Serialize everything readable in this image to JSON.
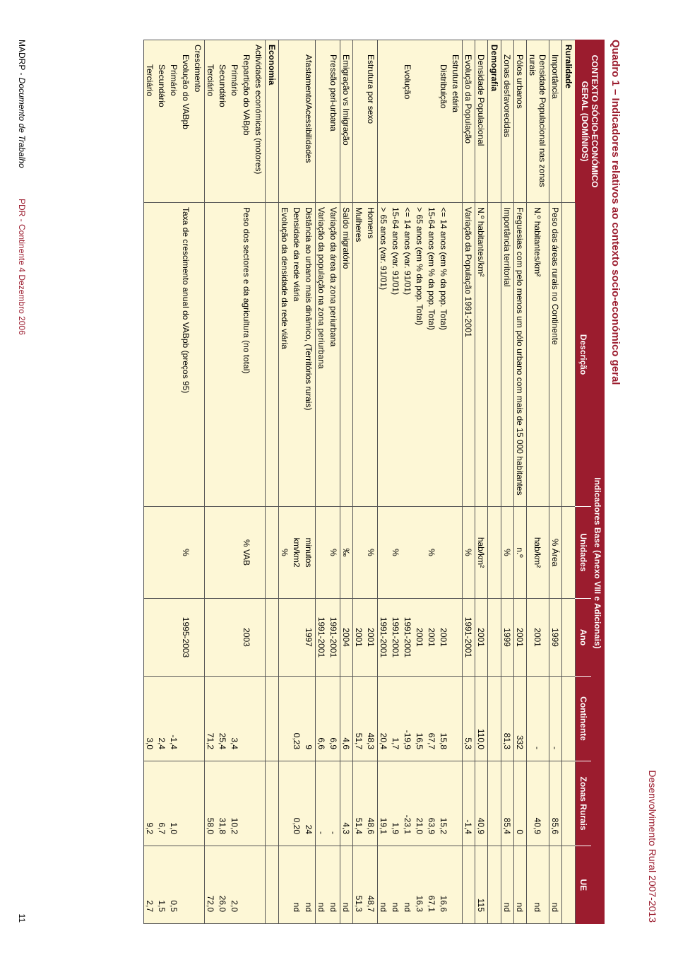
{
  "document_header": "Desenvolvimento Rural 2007-2013",
  "table_title": "Quadro 1 – Indicadores relativos ao contexto socio-económico geral",
  "page_number": "11",
  "footer": {
    "madrp": "MADRP - ",
    "doc": "Documento de Trabalho",
    "pdr": "PDR - Continente  4 Dezembro 2006"
  },
  "headers": {
    "domain": "CONTEXTO SÓCIO-ECONÓMICO GERAL (DOMÍNIOS)",
    "indicators": "Indicadores Base (Anexo VIII e Adicionais)",
    "desc": "Descrição",
    "unit": "Unidades",
    "year": "Ano",
    "cont": "Continente",
    "zr": "Zonas Rurais",
    "ue": "UE"
  },
  "sections": {
    "ruralidade": "Ruralidade",
    "demografia": "Demografia",
    "economia": "Economia"
  },
  "rows": [
    {
      "id": "r1",
      "dom": "Importância",
      "ind": 1,
      "desc": "Peso das áreas rurais no Continente",
      "unit": "% Área",
      "ano": "1999",
      "c": "-",
      "z": "85,6",
      "u": "nd"
    },
    {
      "id": "r2",
      "dom": "Densidade Populacional nas zonas rurais",
      "ind": 1,
      "desc": "N.º habitantes/km²",
      "unit": "hab/km²",
      "ano": "2001",
      "c": "-",
      "z": "40,9",
      "u": "nd"
    },
    {
      "id": "r3",
      "dom": "Pólos urbanos",
      "ind": 1,
      "desc": "Freguesias com pelo menos um pólo urbano com mais de 15 000 habitantes",
      "unit": "n.º",
      "ano": "2001",
      "c": "332",
      "z": "0",
      "u": "nd"
    },
    {
      "id": "r4",
      "dom": "Zonas desfavorecidas",
      "ind": 1,
      "desc": "Importância territorial",
      "unit": "%",
      "ano": "1999",
      "c": "81,3",
      "z": "85,4",
      "u": "nd"
    },
    {
      "id": "d1",
      "dom": "Densidade Populacional",
      "ind": 1,
      "desc": "N.º habitantes/km²",
      "unit": "hab/km²",
      "ano": "2001",
      "c": "110,0",
      "z": "40,9",
      "u": "115"
    },
    {
      "id": "d2",
      "dom": "Evolução da População",
      "ind": 1,
      "desc": "Variação da População 1991-2001",
      "unit": "%",
      "ano": "1991-2001",
      "c": "5,3",
      "z": "-1,4",
      "u": ""
    },
    {
      "id": "d3",
      "dom": "Estrutura etária",
      "ind": 1,
      "desc": "",
      "unit": "",
      "ano": "",
      "c": "",
      "z": "",
      "u": ""
    },
    {
      "id": "d4",
      "dom": "Distribuição",
      "ind": 2,
      "desc": "<= 14 anos   (em % da pop. Total)",
      "unit": "",
      "ano": "2001",
      "c": "15,8",
      "z": "15,2",
      "u": "16,6"
    },
    {
      "id": "d5",
      "dom": "",
      "ind": 2,
      "desc": "15-64 anos   (em % da pop. Total)",
      "unit": "%",
      "ano": "2001",
      "c": "67,7",
      "z": "63,9",
      "u": "67,1"
    },
    {
      "id": "d6",
      "dom": "",
      "ind": 2,
      "desc": "> 65 anos   (em % da pop. Total)",
      "unit": "",
      "ano": "2001",
      "c": "16,5",
      "z": "21,0",
      "u": "16,3"
    },
    {
      "id": "d7",
      "dom": "Evolução",
      "ind": 2,
      "desc": "<= 14 anos   (var. 91/01)",
      "unit": "",
      "ano": "1991-2001",
      "c": "-19,9",
      "z": "-23,1",
      "u": "nd"
    },
    {
      "id": "d8",
      "dom": "",
      "ind": 2,
      "desc": "15-64 anos   (var. 91/01)",
      "unit": "%",
      "ano": "1991-2001",
      "c": "1,7",
      "z": "1,9",
      "u": "nd"
    },
    {
      "id": "d9",
      "dom": "",
      "ind": 2,
      "desc": "> 65 anos   (var. 91/01)",
      "unit": "",
      "ano": "1991-2001",
      "c": "20,4",
      "z": "19,1",
      "u": "nd"
    },
    {
      "id": "s1",
      "dom": "Estrutura por sexo",
      "ind": 1,
      "desc": "Homens",
      "unit": "%",
      "ano": "2001",
      "c": "48,3",
      "z": "48,6",
      "u": "48,7"
    },
    {
      "id": "s2",
      "dom": "",
      "ind": 1,
      "desc": "Mulheres",
      "unit": "",
      "ano": "2001",
      "c": "51,7",
      "z": "51,4",
      "u": "51,3"
    },
    {
      "id": "s3",
      "dom": "Emigração vs Imigração",
      "ind": 1,
      "desc": "Saldo migratório",
      "unit": "‰",
      "ano": "2004",
      "c": "4,6",
      "z": "4,3",
      "u": "nd"
    },
    {
      "id": "s4",
      "dom": "Pressão peri-urbana",
      "ind": 1,
      "desc": "Variação da área da zona periurbana",
      "unit": "%",
      "ano": "1991-2001",
      "c": "6,9",
      "z": "-",
      "u": "nd"
    },
    {
      "id": "s5",
      "dom": "",
      "ind": 1,
      "desc": "Variação da população na zona periurbana",
      "unit": "",
      "ano": "1991-2001",
      "c": "6,6",
      "z": "-",
      "u": "nd"
    },
    {
      "id": "s6",
      "dom": "Afastamento/Acessibilidades",
      "ind": 1,
      "desc": "Distância ao urbano mais dinâmico, (Territórios rurais)",
      "unit": "minutos",
      "ano": "1997",
      "c": "9",
      "z": "24",
      "u": "nd"
    },
    {
      "id": "s7",
      "dom": "",
      "ind": 1,
      "desc": "Densidade da rede viária",
      "unit": "km/km2",
      "ano": "",
      "c": "0,23",
      "z": "0,20",
      "u": "nd"
    },
    {
      "id": "s8",
      "dom": "",
      "ind": 1,
      "desc": "Evolução da densidade da rede viária",
      "unit": "%",
      "ano": "",
      "c": "",
      "z": "",
      "u": ""
    },
    {
      "id": "e1",
      "dom": "Actividades económicas (motores)",
      "ind": 0,
      "desc": "",
      "unit": "",
      "ano": "",
      "c": "",
      "z": "",
      "u": ""
    },
    {
      "id": "e2",
      "dom": "Repartição do VABpb",
      "ind": 1,
      "desc": "Peso dos sectores e da agricultura (no total)",
      "unit": "% VAB",
      "ano": "2003",
      "c": "",
      "z": "",
      "u": ""
    },
    {
      "id": "e3",
      "dom": "Primário",
      "ind": 2,
      "desc": "",
      "unit": "",
      "ano": "",
      "c": "3,4",
      "z": "10,2",
      "u": "2,0"
    },
    {
      "id": "e4",
      "dom": "Secundário",
      "ind": 2,
      "desc": "",
      "unit": "",
      "ano": "",
      "c": "25,4",
      "z": "31,8",
      "u": "26,0"
    },
    {
      "id": "e5",
      "dom": "Terciário",
      "ind": 2,
      "desc": "",
      "unit": "",
      "ano": "",
      "c": "71,2",
      "z": "58,0",
      "u": "72,0"
    },
    {
      "id": "e6",
      "dom": "Crescimento",
      "ind": 0,
      "desc": "",
      "unit": "",
      "ano": "",
      "c": "",
      "z": "",
      "u": ""
    },
    {
      "id": "e7",
      "dom": "Evolução do VABpb",
      "ind": 1,
      "desc": "Taxa de crescimento anual do VABpb (preços 95)",
      "unit": "%",
      "ano": "1995-2003",
      "c": "",
      "z": "",
      "u": ""
    },
    {
      "id": "e8",
      "dom": "Primário",
      "ind": 2,
      "desc": "",
      "unit": "",
      "ano": "",
      "c": "-1,4",
      "z": "1,0",
      "u": "0,5"
    },
    {
      "id": "e9",
      "dom": "Secundário",
      "ind": 2,
      "desc": "",
      "unit": "",
      "ano": "",
      "c": "2,4",
      "z": "6,7",
      "u": "1,5"
    },
    {
      "id": "e10",
      "dom": "Terciário",
      "ind": 2,
      "desc": "",
      "unit": "",
      "ano": "",
      "c": "3,0",
      "z": "9,2",
      "u": "2,7"
    }
  ],
  "colors": {
    "header_bg": "#9b1c2e",
    "header_fg": "#ffffff",
    "body_bg": "#fdf7d6",
    "border": "#555555",
    "title": "#9b1c2e"
  }
}
